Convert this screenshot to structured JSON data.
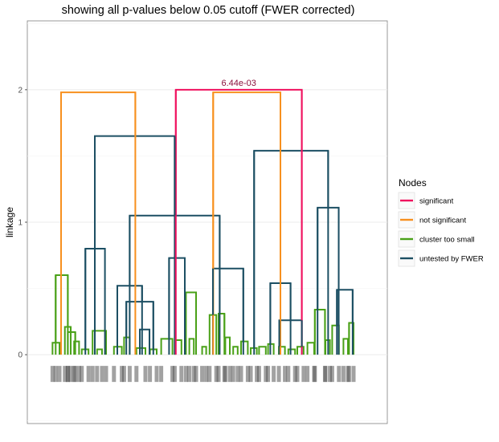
{
  "chart_data": {
    "type": "dendrogram",
    "title": "showing all p-values below 0.05 cutoff (FWER corrected)",
    "ylabel": "linkage",
    "ylim": [
      -0.52,
      2.52
    ],
    "yticks": [
      0,
      1,
      2
    ],
    "ytick_labels": [
      "0",
      "1",
      "2"
    ],
    "grid": true,
    "legend_position": "right",
    "legend": {
      "title": "Nodes",
      "entries": [
        {
          "key": "significant",
          "label": "significant",
          "color": "#f0125f"
        },
        {
          "key": "not_significant",
          "label": "not significant",
          "color": "#f7901e"
        },
        {
          "key": "too_small",
          "label": "cluster too small",
          "color": "#4aa118"
        },
        {
          "key": "untested",
          "label": "untested by FWER",
          "color": "#1c4f63"
        }
      ]
    },
    "annotation": {
      "text": "6.44e-03",
      "color": "#8b0f3b"
    },
    "merges": [
      {
        "status": "significant",
        "left": 0.66,
        "right": 1.22,
        "height": 2.0
      },
      {
        "status": "not_significant",
        "left": 0.15,
        "right": 0.48,
        "height": 1.98
      },
      {
        "status": "not_significant",
        "left": 0.826,
        "right": 1.125,
        "height": 1.98
      },
      {
        "status": "untested",
        "left": 0.3,
        "right": 0.655,
        "height": 1.65
      },
      {
        "status": "untested",
        "left": 1.008,
        "right": 1.337,
        "height": 1.54
      },
      {
        "status": "untested",
        "left": 0.455,
        "right": 0.855,
        "height": 1.05
      },
      {
        "status": "untested",
        "left": 1.29,
        "right": 1.384,
        "height": 1.11
      },
      {
        "status": "untested",
        "left": 0.258,
        "right": 0.345,
        "height": 0.8
      },
      {
        "status": "untested",
        "left": 0.825,
        "right": 0.96,
        "height": 0.65
      },
      {
        "status": "untested",
        "left": 0.63,
        "right": 0.7,
        "height": 0.73
      },
      {
        "status": "untested",
        "left": 1.08,
        "right": 1.17,
        "height": 0.54
      },
      {
        "status": "untested",
        "left": 1.376,
        "right": 1.446,
        "height": 0.49
      },
      {
        "status": "untested",
        "left": 0.4,
        "right": 0.51,
        "height": 0.52
      },
      {
        "status": "untested",
        "left": 0.44,
        "right": 0.56,
        "height": 0.4
      },
      {
        "status": "untested",
        "left": 0.5,
        "right": 0.543,
        "height": 0.19
      },
      {
        "status": "untested",
        "left": 1.12,
        "right": 1.22,
        "height": 0.26
      },
      {
        "status": "too_small",
        "left": 0.126,
        "right": 0.18,
        "height": 0.6
      },
      {
        "status": "too_small",
        "left": 0.112,
        "right": 0.143,
        "height": 0.09
      },
      {
        "status": "too_small",
        "left": 0.167,
        "right": 0.193,
        "height": 0.21
      },
      {
        "status": "too_small",
        "left": 0.18,
        "right": 0.213,
        "height": 0.17
      },
      {
        "status": "too_small",
        "left": 0.208,
        "right": 0.23,
        "height": 0.1
      },
      {
        "status": "too_small",
        "left": 0.242,
        "right": 0.272,
        "height": 0.04
      },
      {
        "status": "too_small",
        "left": 0.29,
        "right": 0.35,
        "height": 0.18
      },
      {
        "status": "too_small",
        "left": 0.31,
        "right": 0.332,
        "height": 0.04
      },
      {
        "status": "too_small",
        "left": 0.385,
        "right": 0.42,
        "height": 0.06
      },
      {
        "status": "too_small",
        "left": 0.43,
        "right": 0.455,
        "height": 0.13
      },
      {
        "status": "too_small",
        "left": 0.485,
        "right": 0.525,
        "height": 0.05
      },
      {
        "status": "too_small",
        "left": 0.545,
        "right": 0.575,
        "height": 0.04
      },
      {
        "status": "too_small",
        "left": 0.595,
        "right": 0.645,
        "height": 0.12
      },
      {
        "status": "too_small",
        "left": 0.655,
        "right": 0.685,
        "height": 0.11
      },
      {
        "status": "too_small",
        "left": 0.705,
        "right": 0.75,
        "height": 0.47
      },
      {
        "status": "too_small",
        "left": 0.72,
        "right": 0.74,
        "height": 0.12
      },
      {
        "status": "too_small",
        "left": 0.777,
        "right": 0.795,
        "height": 0.06
      },
      {
        "status": "too_small",
        "left": 0.81,
        "right": 0.84,
        "height": 0.3
      },
      {
        "status": "too_small",
        "left": 0.85,
        "right": 0.876,
        "height": 0.31
      },
      {
        "status": "too_small",
        "left": 0.88,
        "right": 0.9,
        "height": 0.13
      },
      {
        "status": "too_small",
        "left": 0.915,
        "right": 0.935,
        "height": 0.06
      },
      {
        "status": "too_small",
        "left": 0.95,
        "right": 0.98,
        "height": 0.1
      },
      {
        "status": "too_small",
        "left": 0.993,
        "right": 1.02,
        "height": 0.05
      },
      {
        "status": "too_small",
        "left": 1.03,
        "right": 1.06,
        "height": 0.06
      },
      {
        "status": "too_small",
        "left": 1.07,
        "right": 1.095,
        "height": 0.08
      },
      {
        "status": "too_small",
        "left": 1.118,
        "right": 1.145,
        "height": 0.06
      },
      {
        "status": "too_small",
        "left": 1.16,
        "right": 1.19,
        "height": 0.04
      },
      {
        "status": "too_small",
        "left": 1.2,
        "right": 1.228,
        "height": 0.06
      },
      {
        "status": "too_small",
        "left": 1.245,
        "right": 1.275,
        "height": 0.09
      },
      {
        "status": "too_small",
        "left": 1.278,
        "right": 1.323,
        "height": 0.34
      },
      {
        "status": "too_small",
        "left": 1.325,
        "right": 1.345,
        "height": 0.11
      },
      {
        "status": "too_small",
        "left": 1.355,
        "right": 1.385,
        "height": 0.22
      },
      {
        "status": "too_small",
        "left": 1.405,
        "right": 1.425,
        "height": 0.12
      },
      {
        "status": "too_small",
        "left": 1.43,
        "right": 1.45,
        "height": 0.24
      }
    ]
  }
}
